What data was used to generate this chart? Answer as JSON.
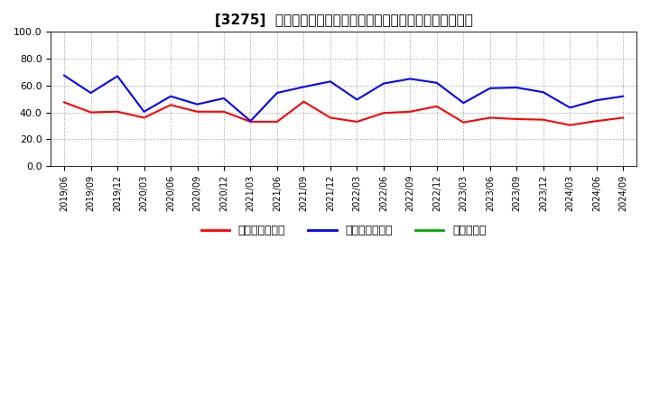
{
  "title": "[3275]  売上債権回転率、買入債務回転率、在庫回転率の推移",
  "xlabels": [
    "2019/06",
    "2019/09",
    "2019/12",
    "2020/03",
    "2020/06",
    "2020/09",
    "2020/12",
    "2021/03",
    "2021/06",
    "2021/09",
    "2021/12",
    "2022/03",
    "2022/06",
    "2022/09",
    "2022/12",
    "2023/03",
    "2023/06",
    "2023/09",
    "2023/12",
    "2024/03",
    "2024/06",
    "2024/09"
  ],
  "売上債権回転率": [
    47.5,
    40.0,
    40.5,
    36.0,
    45.5,
    40.5,
    40.5,
    33.0,
    33.0,
    48.0,
    36.0,
    33.0,
    39.5,
    40.5,
    44.5,
    32.5,
    36.0,
    35.0,
    34.5,
    30.5,
    33.5,
    36.0
  ],
  "買入債務回転率": [
    67.5,
    54.5,
    67.0,
    40.5,
    52.0,
    46.0,
    50.5,
    33.5,
    54.5,
    59.0,
    63.0,
    49.5,
    61.5,
    65.0,
    62.0,
    47.0,
    58.0,
    58.5,
    55.0,
    43.5,
    49.0,
    52.0
  ],
  "在庫回転率": [
    null,
    null,
    null,
    null,
    null,
    null,
    null,
    null,
    null,
    null,
    null,
    null,
    null,
    null,
    null,
    null,
    null,
    null,
    null,
    null,
    null,
    null
  ],
  "colors": {
    "売上債権回転率": "#ff0000",
    "買入債務回転率": "#0000ff",
    "在庫回転率": "#00aa00"
  },
  "ylim": [
    0,
    100
  ],
  "yticks": [
    0.0,
    20.0,
    40.0,
    60.0,
    80.0,
    100.0
  ],
  "background_color": "#ffffff",
  "plot_bg_color": "#ffffff",
  "grid_color": "#999999",
  "title_fontsize": 11,
  "legend_labels": [
    "売上債権回転率",
    "買入債務回転率",
    "在庫回転率"
  ]
}
